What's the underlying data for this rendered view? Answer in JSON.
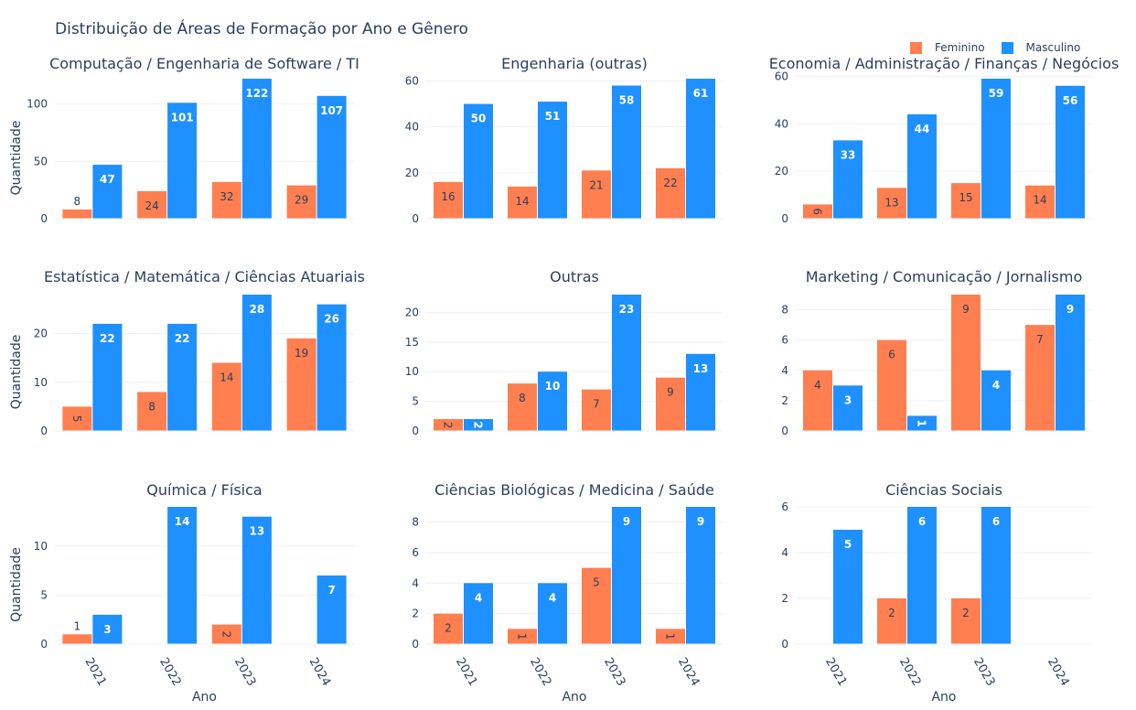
{
  "title": "Distribuição de Áreas de Formação por Ano e Gênero",
  "colors": {
    "feminino": "#ff7f50",
    "masculino": "#1e90ff",
    "grid": "#ebf0f8",
    "axis_text": "#2a3f5f"
  },
  "legend": [
    {
      "name": "Feminino",
      "color": "#ff7f50"
    },
    {
      "name": "Masculino",
      "color": "#1e90ff"
    }
  ],
  "chart_data": [
    {
      "type": "bar",
      "title": "Computação / Engenharia de Software / TI",
      "categories": [
        "2021",
        "2022",
        "2023",
        "2024"
      ],
      "series": [
        {
          "name": "Feminino",
          "values": [
            8,
            24,
            32,
            29
          ]
        },
        {
          "name": "Masculino",
          "values": [
            47,
            101,
            122,
            107
          ]
        }
      ],
      "ylim": [
        0,
        122
      ],
      "yticks": [
        0,
        50,
        100
      ],
      "ylabel": "Quantidade",
      "xlabel": ""
    },
    {
      "type": "bar",
      "title": "Engenharia (outras)",
      "categories": [
        "2021",
        "2022",
        "2023",
        "2024"
      ],
      "series": [
        {
          "name": "Feminino",
          "values": [
            16,
            14,
            21,
            22
          ]
        },
        {
          "name": "Masculino",
          "values": [
            50,
            51,
            58,
            61
          ]
        }
      ],
      "ylim": [
        0,
        61
      ],
      "yticks": [
        0,
        20,
        40,
        60
      ],
      "ylabel": "",
      "xlabel": ""
    },
    {
      "type": "bar",
      "title": "Economia / Administração / Finanças / Negócios",
      "categories": [
        "2021",
        "2022",
        "2023",
        "2024"
      ],
      "series": [
        {
          "name": "Feminino",
          "values": [
            6,
            13,
            15,
            14
          ]
        },
        {
          "name": "Masculino",
          "values": [
            33,
            44,
            59,
            56
          ]
        }
      ],
      "ylim": [
        0,
        59
      ],
      "yticks": [
        0,
        20,
        40,
        60
      ],
      "ylabel": "",
      "xlabel": ""
    },
    {
      "type": "bar",
      "title": "Estatística / Matemática / Ciências Atuariais",
      "categories": [
        "2021",
        "2022",
        "2023",
        "2024"
      ],
      "series": [
        {
          "name": "Feminino",
          "values": [
            5,
            8,
            14,
            19
          ]
        },
        {
          "name": "Masculino",
          "values": [
            22,
            22,
            28,
            26
          ]
        }
      ],
      "ylim": [
        0,
        28
      ],
      "yticks": [
        0,
        10,
        20
      ],
      "ylabel": "Quantidade",
      "xlabel": ""
    },
    {
      "type": "bar",
      "title": "Outras",
      "categories": [
        "2021",
        "2022",
        "2023",
        "2024"
      ],
      "series": [
        {
          "name": "Feminino",
          "values": [
            2,
            8,
            7,
            9
          ]
        },
        {
          "name": "Masculino",
          "values": [
            2,
            10,
            23,
            13
          ]
        }
      ],
      "ylim": [
        0,
        23
      ],
      "yticks": [
        0,
        5,
        10,
        15,
        20
      ],
      "ylabel": "",
      "xlabel": ""
    },
    {
      "type": "bar",
      "title": "Marketing / Comunicação / Jornalismo",
      "categories": [
        "2021",
        "2022",
        "2023",
        "2024"
      ],
      "series": [
        {
          "name": "Feminino",
          "values": [
            4,
            6,
            9,
            7
          ]
        },
        {
          "name": "Masculino",
          "values": [
            3,
            1,
            4,
            9
          ]
        }
      ],
      "ylim": [
        0,
        9
      ],
      "yticks": [
        0,
        2,
        4,
        6,
        8
      ],
      "ylabel": "",
      "xlabel": ""
    },
    {
      "type": "bar",
      "title": "Química / Física",
      "categories": [
        "2021",
        "2022",
        "2023",
        "2024"
      ],
      "series": [
        {
          "name": "Feminino",
          "values": [
            1,
            null,
            2,
            null
          ]
        },
        {
          "name": "Masculino",
          "values": [
            3,
            14,
            13,
            7
          ]
        }
      ],
      "ylim": [
        0,
        14
      ],
      "yticks": [
        0,
        5,
        10
      ],
      "ylabel": "Quantidade",
      "xlabel": "Ano"
    },
    {
      "type": "bar",
      "title": "Ciências Biológicas / Medicina / Saúde",
      "categories": [
        "2021",
        "2022",
        "2023",
        "2024"
      ],
      "series": [
        {
          "name": "Feminino",
          "values": [
            2,
            1,
            5,
            1
          ]
        },
        {
          "name": "Masculino",
          "values": [
            4,
            4,
            9,
            9
          ]
        }
      ],
      "ylim": [
        0,
        9
      ],
      "yticks": [
        0,
        2,
        4,
        6,
        8
      ],
      "ylabel": "",
      "xlabel": "Ano"
    },
    {
      "type": "bar",
      "title": "Ciências Sociais",
      "categories": [
        "2021",
        "2022",
        "2023",
        "2024"
      ],
      "series": [
        {
          "name": "Feminino",
          "values": [
            null,
            2,
            2,
            null
          ]
        },
        {
          "name": "Masculino",
          "values": [
            5,
            6,
            6,
            null
          ]
        }
      ],
      "ylim": [
        0,
        6
      ],
      "yticks": [
        0,
        2,
        4,
        6
      ],
      "ylabel": "",
      "xlabel": "Ano"
    }
  ]
}
